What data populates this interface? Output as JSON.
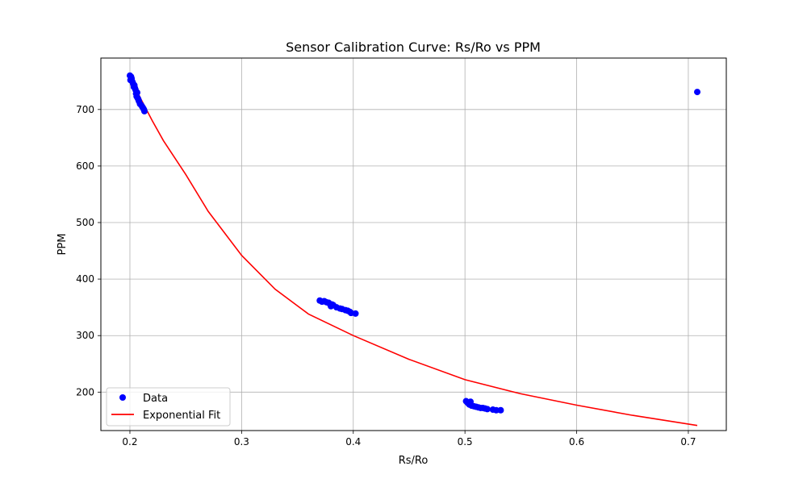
{
  "chart_data": {
    "type": "scatter",
    "title": "Sensor Calibration Curve: Rs/Ro vs PPM",
    "xlabel": "Rs/Ro",
    "ylabel": "PPM",
    "xlim": [
      0.174,
      0.734
    ],
    "ylim": [
      132,
      791
    ],
    "x_ticks": [
      0.2,
      0.3,
      0.4,
      0.5,
      0.6,
      0.7
    ],
    "x_tick_labels": [
      "0.2",
      "0.3",
      "0.4",
      "0.5",
      "0.6",
      "0.7"
    ],
    "y_ticks": [
      200,
      300,
      400,
      500,
      600,
      700
    ],
    "y_tick_labels": [
      "200",
      "300",
      "400",
      "500",
      "600",
      "700"
    ],
    "grid": true,
    "legend_position": "lower-left",
    "series": [
      {
        "name": "Data",
        "kind": "scatter",
        "color": "#0000ff",
        "x": [
          0.2,
          0.2005,
          0.201,
          0.2015,
          0.202,
          0.2025,
          0.203,
          0.2035,
          0.204,
          0.2045,
          0.205,
          0.2055,
          0.206,
          0.2065,
          0.207,
          0.2075,
          0.208,
          0.209,
          0.21,
          0.211,
          0.212,
          0.2125,
          0.213,
          0.37,
          0.372,
          0.374,
          0.376,
          0.378,
          0.379,
          0.38,
          0.381,
          0.382,
          0.385,
          0.388,
          0.39,
          0.393,
          0.395,
          0.397,
          0.398,
          0.402,
          0.501,
          0.502,
          0.503,
          0.504,
          0.505,
          0.506,
          0.508,
          0.51,
          0.512,
          0.514,
          0.516,
          0.518,
          0.52,
          0.525,
          0.528,
          0.532,
          0.708
        ],
        "y": [
          760,
          752,
          758,
          755,
          750,
          748,
          745,
          740,
          743,
          738,
          735,
          728,
          723,
          730,
          720,
          718,
          715,
          710,
          708,
          705,
          702,
          700,
          697,
          362,
          360,
          361,
          359,
          358,
          356,
          352,
          355,
          354,
          350,
          348,
          347,
          345,
          344,
          342,
          340,
          339,
          184,
          182,
          180,
          178,
          183,
          176,
          175,
          174,
          173,
          172,
          172,
          171,
          170,
          169,
          168,
          168,
          731
        ]
      },
      {
        "name": "Exponential Fit",
        "kind": "line",
        "color": "#ff0000",
        "x": [
          0.2,
          0.21,
          0.22,
          0.23,
          0.25,
          0.27,
          0.3,
          0.33,
          0.36,
          0.4,
          0.45,
          0.5,
          0.55,
          0.6,
          0.65,
          0.708
        ],
        "y": [
          760,
          718,
          680,
          645,
          585,
          520,
          442,
          382,
          338,
          300,
          258,
          222,
          197,
          177,
          159,
          141
        ]
      }
    ]
  }
}
